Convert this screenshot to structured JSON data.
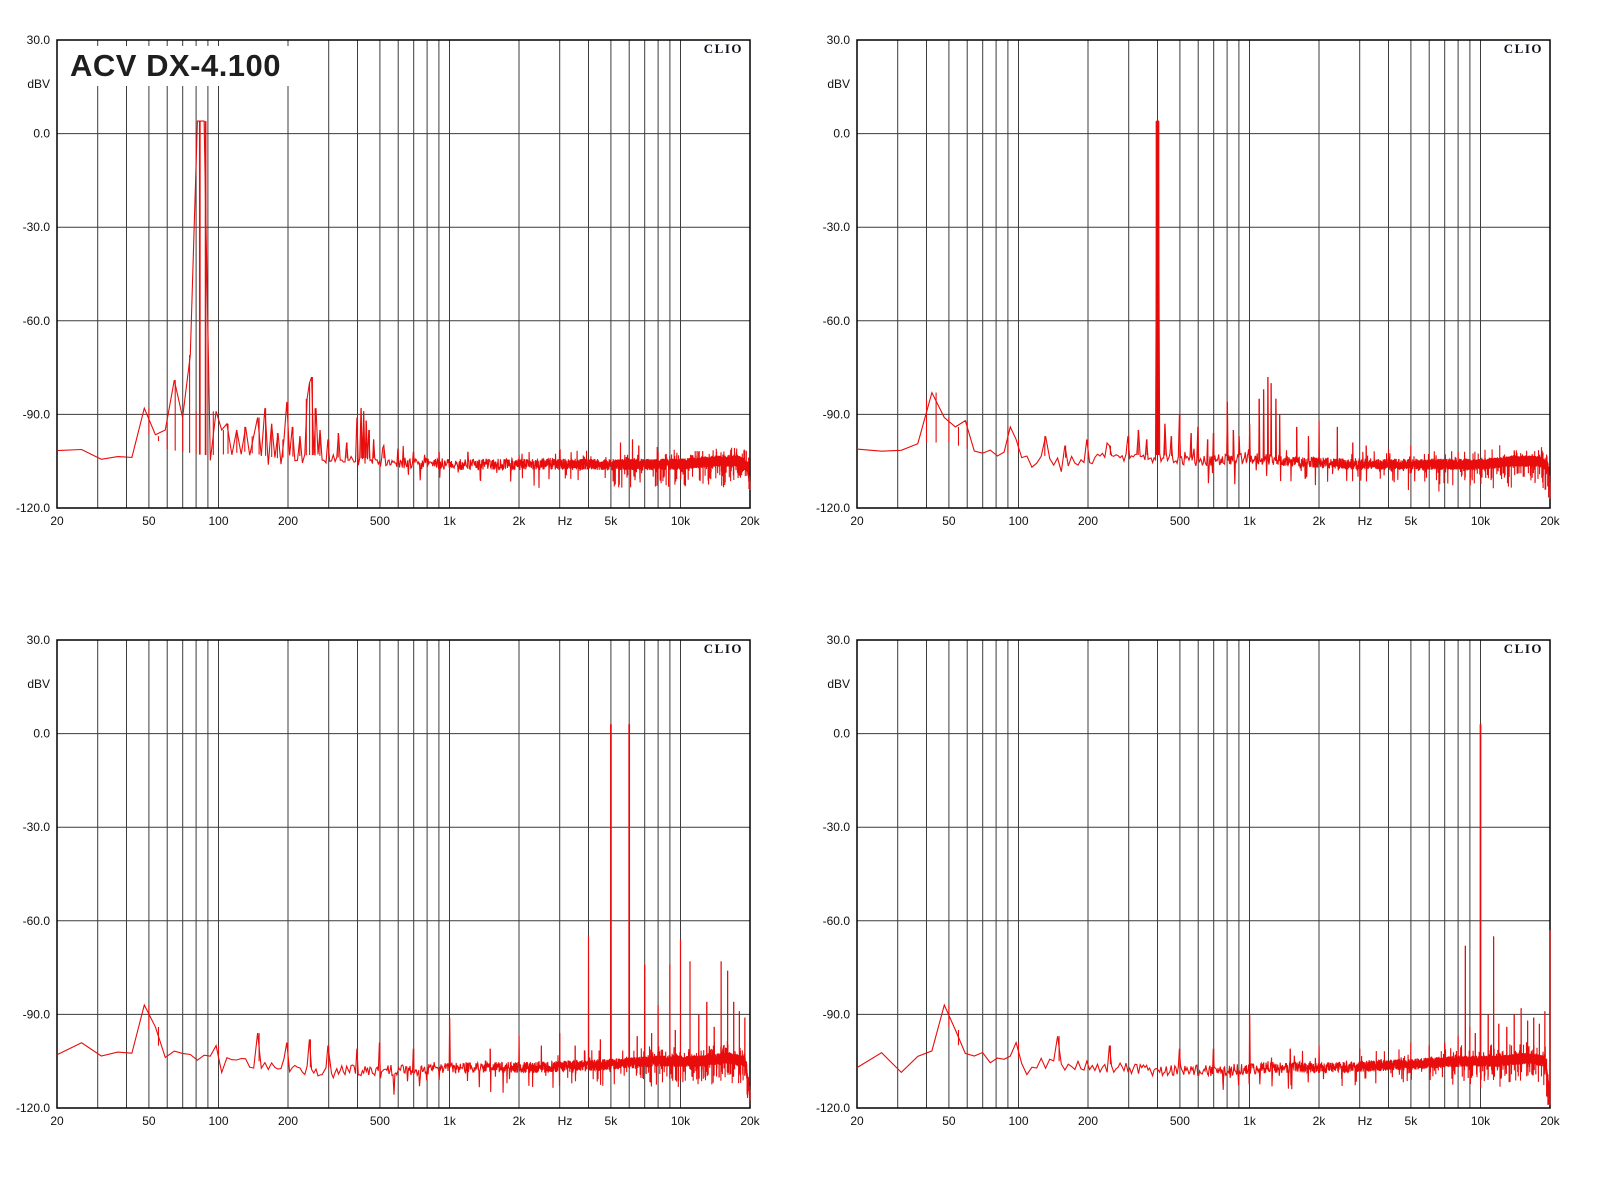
{
  "page": {
    "background": "#ffffff"
  },
  "branding": {
    "logo_text": "CLIO"
  },
  "colors": {
    "trace": "#e80c0c",
    "grid": "#3c3c3c",
    "border": "#000000",
    "text": "#111111"
  },
  "axes": {
    "x": {
      "scale": "log",
      "min_hz": 20,
      "max_hz": 20000,
      "unit": "Hz",
      "unit_position_hz": 3162,
      "ticks": [
        {
          "f": 20,
          "label": "20"
        },
        {
          "f": 50,
          "label": "50"
        },
        {
          "f": 100,
          "label": "100"
        },
        {
          "f": 200,
          "label": "200"
        },
        {
          "f": 500,
          "label": "500"
        },
        {
          "f": 1000,
          "label": "1k"
        },
        {
          "f": 2000,
          "label": "2k"
        },
        {
          "f": 5000,
          "label": "5k"
        },
        {
          "f": 10000,
          "label": "10k"
        },
        {
          "f": 20000,
          "label": "20k"
        }
      ]
    },
    "y": {
      "unit": "dBV",
      "min": -120,
      "max": 30,
      "ticks": [
        {
          "v": 30,
          "label": "30.0"
        },
        {
          "v": 0,
          "label": "0.0"
        },
        {
          "v": -30,
          "label": "-30.0"
        },
        {
          "v": -60,
          "label": "-60.0"
        },
        {
          "v": -90,
          "label": "-90.0"
        },
        {
          "v": -120,
          "label": "-120.0"
        }
      ]
    }
  },
  "chart_data": [
    {
      "type": "line",
      "title": "ACV DX-4.100",
      "logo": "CLIO",
      "series_color": "#e80c0c",
      "fundamental_hz": 85,
      "peak_level_dbv": 4,
      "noise_floor": [
        [
          20,
          -102
        ],
        [
          24,
          -99
        ],
        [
          28,
          -104
        ],
        [
          35,
          -102
        ],
        [
          42,
          -103
        ],
        [
          48,
          -98
        ],
        [
          52,
          -97
        ],
        [
          58,
          -102
        ],
        [
          70,
          -103
        ],
        [
          85,
          -104
        ],
        [
          100,
          -104
        ],
        [
          130,
          -103
        ],
        [
          180,
          -105
        ],
        [
          250,
          -104
        ],
        [
          350,
          -105
        ],
        [
          500,
          -105
        ],
        [
          800,
          -106
        ],
        [
          1500,
          -106
        ],
        [
          3000,
          -106
        ],
        [
          6000,
          -106
        ],
        [
          10000,
          -106
        ],
        [
          14000,
          -105
        ],
        [
          18000,
          -105
        ],
        [
          19600,
          -107
        ],
        [
          20000,
          -113
        ]
      ],
      "peaks": [
        [
          50,
          -88
        ],
        [
          55,
          -97
        ],
        [
          60,
          -95
        ],
        [
          65,
          -79
        ],
        [
          70,
          -91
        ],
        [
          75,
          -71
        ],
        [
          80,
          -89
        ],
        [
          83,
          4
        ],
        [
          88,
          4
        ],
        [
          95,
          -89
        ],
        [
          105,
          -95
        ],
        [
          110,
          -93
        ],
        [
          120,
          -95
        ],
        [
          130,
          -94
        ],
        [
          140,
          -97
        ],
        [
          150,
          -91
        ],
        [
          160,
          -88
        ],
        [
          170,
          -93
        ],
        [
          180,
          -96
        ],
        [
          190,
          -98
        ],
        [
          200,
          -86
        ],
        [
          210,
          -94
        ],
        [
          225,
          -97
        ],
        [
          240,
          -85
        ],
        [
          248,
          -80
        ],
        [
          255,
          -78
        ],
        [
          262,
          -88
        ],
        [
          275,
          -95
        ],
        [
          300,
          -98
        ],
        [
          330,
          -96
        ],
        [
          360,
          -99
        ],
        [
          400,
          -91
        ],
        [
          415,
          -88
        ],
        [
          425,
          -89
        ],
        [
          435,
          -92
        ],
        [
          450,
          -95
        ],
        [
          470,
          -98
        ],
        [
          520,
          -100
        ],
        [
          600,
          -101
        ],
        [
          700,
          -102
        ],
        [
          900,
          -102
        ],
        [
          1200,
          -102
        ],
        [
          2000,
          -103
        ],
        [
          3000,
          -102
        ],
        [
          5500,
          -99
        ],
        [
          6200,
          -98
        ],
        [
          6600,
          -100
        ],
        [
          8000,
          -102
        ],
        [
          12000,
          -102
        ]
      ]
    },
    {
      "type": "line",
      "title": "",
      "logo": "CLIO",
      "series_color": "#e80c0c",
      "fundamental_hz": 400,
      "peak_level_dbv": 4,
      "noise_floor": [
        [
          20,
          -101
        ],
        [
          24,
          -99
        ],
        [
          30,
          -103
        ],
        [
          40,
          -100
        ],
        [
          50,
          -100
        ],
        [
          60,
          -102
        ],
        [
          80,
          -104
        ],
        [
          100,
          -103
        ],
        [
          150,
          -105
        ],
        [
          250,
          -104
        ],
        [
          400,
          -104
        ],
        [
          600,
          -105
        ],
        [
          1000,
          -104
        ],
        [
          1500,
          -105
        ],
        [
          3000,
          -106
        ],
        [
          6000,
          -106
        ],
        [
          10000,
          -106
        ],
        [
          14000,
          -105
        ],
        [
          18000,
          -105
        ],
        [
          19600,
          -107
        ],
        [
          20000,
          -114
        ]
      ],
      "peaks": [
        [
          40,
          -85
        ],
        [
          44,
          -83
        ],
        [
          50,
          -91
        ],
        [
          55,
          -94
        ],
        [
          60,
          -92
        ],
        [
          90,
          -94
        ],
        [
          100,
          -98
        ],
        [
          130,
          -97
        ],
        [
          160,
          -100
        ],
        [
          200,
          -98
        ],
        [
          250,
          -100
        ],
        [
          300,
          -97
        ],
        [
          330,
          -95
        ],
        [
          360,
          -98
        ],
        [
          396,
          4
        ],
        [
          404,
          4
        ],
        [
          430,
          -93
        ],
        [
          460,
          -97
        ],
        [
          500,
          -90
        ],
        [
          560,
          -96
        ],
        [
          600,
          -94
        ],
        [
          660,
          -98
        ],
        [
          700,
          -96
        ],
        [
          800,
          -86
        ],
        [
          850,
          -95
        ],
        [
          900,
          -97
        ],
        [
          1000,
          -93
        ],
        [
          1100,
          -85
        ],
        [
          1150,
          -82
        ],
        [
          1200,
          -78
        ],
        [
          1240,
          -80
        ],
        [
          1300,
          -85
        ],
        [
          1350,
          -90
        ],
        [
          1600,
          -94
        ],
        [
          1800,
          -97
        ],
        [
          2000,
          -92
        ],
        [
          2400,
          -94
        ],
        [
          2800,
          -99
        ],
        [
          3200,
          -100
        ],
        [
          4000,
          -101
        ],
        [
          5000,
          -100
        ],
        [
          8000,
          -102
        ]
      ]
    },
    {
      "type": "line",
      "title": "",
      "logo": "CLIO",
      "series_color": "#e80c0c",
      "fundamental_hz": 5000,
      "peak_level_dbv": 3,
      "noise_floor": [
        [
          20,
          -102
        ],
        [
          25,
          -100
        ],
        [
          30,
          -104
        ],
        [
          40,
          -102
        ],
        [
          46,
          -99
        ],
        [
          50,
          -96
        ],
        [
          56,
          -102
        ],
        [
          70,
          -104
        ],
        [
          100,
          -105
        ],
        [
          150,
          -106
        ],
        [
          250,
          -108
        ],
        [
          400,
          -108
        ],
        [
          700,
          -108
        ],
        [
          1200,
          -107
        ],
        [
          2500,
          -107
        ],
        [
          5000,
          -106
        ],
        [
          8000,
          -105
        ],
        [
          12000,
          -105
        ],
        [
          16000,
          -104
        ],
        [
          19000,
          -105
        ],
        [
          20000,
          -116
        ]
      ],
      "peaks": [
        [
          50,
          -87
        ],
        [
          55,
          -94
        ],
        [
          100,
          -100
        ],
        [
          150,
          -96
        ],
        [
          200,
          -99
        ],
        [
          250,
          -98
        ],
        [
          300,
          -100
        ],
        [
          400,
          -101
        ],
        [
          500,
          -99
        ],
        [
          700,
          -101
        ],
        [
          1000,
          -91
        ],
        [
          1500,
          -101
        ],
        [
          2000,
          -97
        ],
        [
          2500,
          -100
        ],
        [
          3000,
          -96
        ],
        [
          3500,
          -100
        ],
        [
          4000,
          -65
        ],
        [
          4500,
          -98
        ],
        [
          5000,
          3
        ],
        [
          6000,
          3
        ],
        [
          6500,
          -97
        ],
        [
          7000,
          -74
        ],
        [
          7500,
          -96
        ],
        [
          8000,
          -87
        ],
        [
          9000,
          -74
        ],
        [
          9500,
          -95
        ],
        [
          10000,
          -66
        ],
        [
          11000,
          -73
        ],
        [
          12000,
          -90
        ],
        [
          13000,
          -86
        ],
        [
          14000,
          -94
        ],
        [
          15000,
          -73
        ],
        [
          16000,
          -76
        ],
        [
          17000,
          -86
        ],
        [
          18000,
          -89
        ],
        [
          19000,
          -91
        ]
      ]
    },
    {
      "type": "line",
      "title": "",
      "logo": "CLIO",
      "series_color": "#e80c0c",
      "fundamental_hz": 10000,
      "peak_level_dbv": 3,
      "noise_floor": [
        [
          20,
          -102
        ],
        [
          25,
          -100
        ],
        [
          30,
          -104
        ],
        [
          40,
          -102
        ],
        [
          46,
          -99
        ],
        [
          50,
          -95
        ],
        [
          56,
          -102
        ],
        [
          70,
          -104
        ],
        [
          100,
          -105
        ],
        [
          150,
          -106
        ],
        [
          250,
          -107
        ],
        [
          400,
          -108
        ],
        [
          700,
          -108
        ],
        [
          1200,
          -107
        ],
        [
          2500,
          -107
        ],
        [
          5000,
          -106
        ],
        [
          8000,
          -105
        ],
        [
          12000,
          -105
        ],
        [
          16000,
          -104
        ],
        [
          19000,
          -105
        ],
        [
          20000,
          -116
        ]
      ],
      "peaks": [
        [
          50,
          -87
        ],
        [
          55,
          -95
        ],
        [
          100,
          -99
        ],
        [
          150,
          -97
        ],
        [
          250,
          -100
        ],
        [
          500,
          -101
        ],
        [
          700,
          -101
        ],
        [
          1000,
          -90
        ],
        [
          1500,
          -101
        ],
        [
          2000,
          -100
        ],
        [
          3000,
          -101
        ],
        [
          5000,
          -99
        ],
        [
          6000,
          -100
        ],
        [
          7000,
          -99
        ],
        [
          8000,
          -97
        ],
        [
          8600,
          -68
        ],
        [
          9000,
          -94
        ],
        [
          9500,
          -96
        ],
        [
          10000,
          3
        ],
        [
          10800,
          -90
        ],
        [
          11400,
          -65
        ],
        [
          12000,
          -93
        ],
        [
          13000,
          -94
        ],
        [
          14000,
          -90
        ],
        [
          15000,
          -88
        ],
        [
          16000,
          -92
        ],
        [
          17000,
          -91
        ],
        [
          18000,
          -93
        ],
        [
          19000,
          -89
        ],
        [
          20000,
          -63
        ]
      ]
    }
  ]
}
